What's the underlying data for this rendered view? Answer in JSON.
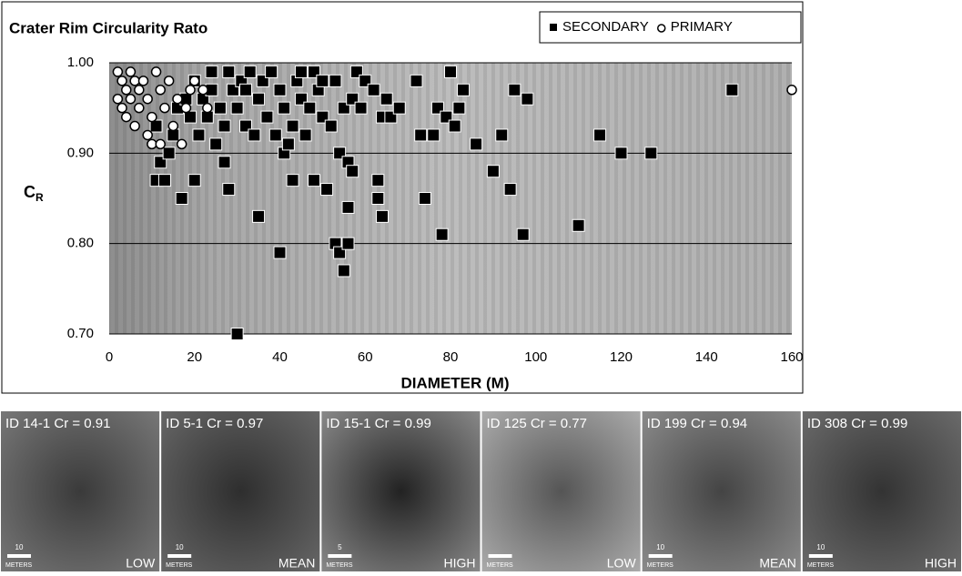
{
  "chart_data": {
    "type": "scatter",
    "title": "Crater Rim Circularity Rato",
    "x_label": "DIAMETER (M)",
    "y_label": "C",
    "y_label_subscript": "R",
    "xlim": [
      0,
      160
    ],
    "ylim": [
      0.7,
      1.0
    ],
    "xticks": [
      0,
      20,
      40,
      60,
      80,
      100,
      120,
      140,
      160
    ],
    "yticks": [
      {
        "value": 0.7,
        "label": "0.70"
      },
      {
        "value": 0.8,
        "label": "0.80"
      },
      {
        "value": 0.9,
        "label": "0.90"
      },
      {
        "value": 1.0,
        "label": "1.00"
      }
    ],
    "grid": true,
    "series": [
      {
        "name": "SECONDARY",
        "color": "#000000",
        "marker": "square",
        "x": [
          11,
          11,
          12,
          13,
          14,
          15,
          16,
          17,
          18,
          19,
          20,
          20,
          21,
          22,
          23,
          24,
          24,
          25,
          26,
          27,
          27,
          28,
          28,
          29,
          30,
          30,
          31,
          32,
          32,
          33,
          34,
          35,
          35,
          36,
          37,
          38,
          39,
          40,
          40,
          41,
          41,
          42,
          43,
          43,
          44,
          45,
          45,
          46,
          47,
          48,
          48,
          49,
          50,
          50,
          51,
          52,
          53,
          53,
          54,
          54,
          55,
          55,
          56,
          56,
          56,
          57,
          57,
          58,
          59,
          60,
          62,
          63,
          63,
          64,
          64,
          65,
          66,
          68,
          72,
          73,
          74,
          76,
          77,
          78,
          79,
          80,
          81,
          82,
          83,
          86,
          90,
          92,
          94,
          95,
          97,
          98,
          110,
          115,
          120,
          127,
          146
        ],
        "values": [
          0.93,
          0.87,
          0.89,
          0.87,
          0.9,
          0.92,
          0.95,
          0.85,
          0.96,
          0.94,
          0.87,
          0.98,
          0.92,
          0.96,
          0.94,
          0.97,
          0.99,
          0.91,
          0.95,
          0.93,
          0.89,
          0.86,
          0.99,
          0.97,
          0.7,
          0.95,
          0.98,
          0.93,
          0.97,
          0.99,
          0.92,
          0.83,
          0.96,
          0.98,
          0.94,
          0.99,
          0.92,
          0.79,
          0.97,
          0.95,
          0.9,
          0.91,
          0.87,
          0.93,
          0.98,
          0.96,
          0.99,
          0.92,
          0.95,
          0.87,
          0.99,
          0.97,
          0.94,
          0.98,
          0.86,
          0.93,
          0.98,
          0.8,
          0.9,
          0.79,
          0.77,
          0.95,
          0.89,
          0.84,
          0.8,
          0.88,
          0.96,
          0.99,
          0.95,
          0.98,
          0.97,
          0.85,
          0.87,
          0.83,
          0.94,
          0.96,
          0.94,
          0.95,
          0.98,
          0.92,
          0.85,
          0.92,
          0.95,
          0.81,
          0.94,
          0.99,
          0.93,
          0.95,
          0.97,
          0.91,
          0.88,
          0.92,
          0.86,
          0.97,
          0.81,
          0.96,
          0.82,
          0.92,
          0.9,
          0.9,
          0.97
        ]
      },
      {
        "name": "PRIMARY",
        "color": "#ffffff",
        "marker": "circle",
        "x": [
          2,
          2,
          3,
          3,
          4,
          4,
          5,
          5,
          6,
          6,
          7,
          7,
          8,
          9,
          9,
          10,
          10,
          11,
          12,
          12,
          13,
          14,
          15,
          16,
          17,
          18,
          19,
          20,
          22,
          23,
          160
        ],
        "values": [
          0.99,
          0.96,
          0.98,
          0.95,
          0.97,
          0.94,
          0.99,
          0.96,
          0.93,
          0.98,
          0.95,
          0.97,
          0.98,
          0.96,
          0.92,
          0.91,
          0.94,
          0.99,
          0.97,
          0.91,
          0.95,
          0.98,
          0.93,
          0.96,
          0.91,
          0.95,
          0.97,
          0.98,
          0.97,
          0.95,
          0.97
        ]
      }
    ]
  },
  "panels": [
    {
      "caption": "ID 14-1 Cr = 0.91",
      "scale": "10",
      "unit": "METERS",
      "level": "LOW"
    },
    {
      "caption": "ID 5-1 Cr = 0.97",
      "scale": "10",
      "unit": "METERS",
      "level": "MEAN"
    },
    {
      "caption": "ID 15-1 Cr = 0.99",
      "scale": "5",
      "unit": "METERS",
      "level": "HIGH"
    },
    {
      "caption": "ID 125 Cr = 0.77",
      "unit": "METERS",
      "level": "LOW"
    },
    {
      "caption": "ID 199 Cr = 0.94",
      "scale": "10",
      "unit": "METERS",
      "level": "MEAN"
    },
    {
      "caption": "ID 308 Cr = 0.99",
      "scale": "10",
      "unit": "METERS",
      "level": "HIGH"
    }
  ]
}
